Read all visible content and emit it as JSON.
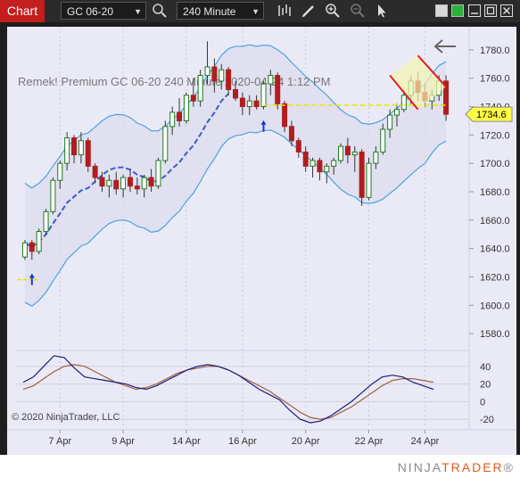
{
  "toolbar": {
    "tab_label": "Chart",
    "instrument": "GC 06-20",
    "interval": "240 Minute",
    "icons": [
      "search-icon",
      "bar-chart-icon",
      "draw-pencil-icon",
      "zoom-in-icon",
      "zoom-out-icon",
      "cursor-arrow-icon",
      "window-gray-icon",
      "window-green-icon",
      "minimize-icon",
      "maximize-icon",
      "close-icon"
    ]
  },
  "chart": {
    "header_text": "Remek!  Premium  GC 06-20  240 Minute  2020-04-24 1:12 PM",
    "price_ticks": [
      "1780.0",
      "1760.0",
      "1740.0",
      "1720.0",
      "1700.0",
      "1680.0",
      "1660.0",
      "1640.0",
      "1620.0",
      "1600.0",
      "1580.0"
    ],
    "current_price": "1734.6",
    "osc_ticks": [
      "40",
      "20",
      "0",
      "-20"
    ],
    "date_labels": [
      "7 Apr",
      "9 Apr",
      "14 Apr",
      "16 Apr",
      "20 Apr",
      "22 Apr",
      "24 Apr"
    ],
    "copyright": "© 2020 NinjaTrader, LLC",
    "colors": {
      "background": "#eaeaf7",
      "candle_up": "#1e7a1e",
      "candle_down": "#b01e1e",
      "band": "#4aa3e0",
      "mid_ma": "#3a5cc8",
      "level": "#e6e600",
      "price_badge": "#ffff44",
      "osc_fast": "#1a1a7a",
      "osc_slow": "#a0603a"
    }
  },
  "chart_data": {
    "type": "candlestick",
    "instrument": "GC 06-20",
    "interval": "240 Minute",
    "y_range": [
      1570,
      1790
    ],
    "osc_range": [
      -30,
      55
    ],
    "candles": [
      [
        1634,
        1646,
        1632,
        1644
      ],
      [
        1644,
        1646,
        1632,
        1638
      ],
      [
        1638,
        1654,
        1636,
        1652
      ],
      [
        1652,
        1668,
        1650,
        1666
      ],
      [
        1666,
        1690,
        1664,
        1688
      ],
      [
        1688,
        1702,
        1682,
        1700
      ],
      [
        1700,
        1722,
        1695,
        1718
      ],
      [
        1718,
        1720,
        1700,
        1706
      ],
      [
        1706,
        1722,
        1700,
        1716
      ],
      [
        1716,
        1718,
        1694,
        1698
      ],
      [
        1698,
        1700,
        1686,
        1690
      ],
      [
        1690,
        1694,
        1680,
        1684
      ],
      [
        1684,
        1692,
        1676,
        1688
      ],
      [
        1688,
        1694,
        1678,
        1682
      ],
      [
        1682,
        1692,
        1676,
        1690
      ],
      [
        1690,
        1696,
        1680,
        1684
      ],
      [
        1684,
        1690,
        1678,
        1682
      ],
      [
        1682,
        1692,
        1676,
        1690
      ],
      [
        1690,
        1696,
        1680,
        1684
      ],
      [
        1684,
        1704,
        1682,
        1702
      ],
      [
        1702,
        1730,
        1700,
        1726
      ],
      [
        1726,
        1740,
        1720,
        1736
      ],
      [
        1736,
        1746,
        1726,
        1730
      ],
      [
        1730,
        1750,
        1728,
        1748
      ],
      [
        1748,
        1760,
        1740,
        1744
      ],
      [
        1744,
        1766,
        1740,
        1762
      ],
      [
        1762,
        1786,
        1756,
        1768
      ],
      [
        1768,
        1774,
        1750,
        1758
      ],
      [
        1758,
        1770,
        1752,
        1766
      ],
      [
        1766,
        1768,
        1748,
        1752
      ],
      [
        1752,
        1758,
        1744,
        1746
      ],
      [
        1746,
        1750,
        1734,
        1740
      ],
      [
        1740,
        1748,
        1734,
        1744
      ],
      [
        1744,
        1748,
        1738,
        1740
      ],
      [
        1740,
        1758,
        1738,
        1756
      ],
      [
        1756,
        1766,
        1748,
        1762
      ],
      [
        1762,
        1764,
        1738,
        1742
      ],
      [
        1742,
        1744,
        1722,
        1726
      ],
      [
        1726,
        1730,
        1712,
        1716
      ],
      [
        1716,
        1718,
        1704,
        1708
      ],
      [
        1708,
        1712,
        1694,
        1698
      ],
      [
        1698,
        1704,
        1690,
        1702
      ],
      [
        1702,
        1704,
        1688,
        1694
      ],
      [
        1694,
        1700,
        1686,
        1698
      ],
      [
        1698,
        1704,
        1692,
        1702
      ],
      [
        1702,
        1714,
        1700,
        1712
      ],
      [
        1712,
        1718,
        1700,
        1706
      ],
      [
        1706,
        1712,
        1694,
        1708
      ],
      [
        1708,
        1710,
        1670,
        1676
      ],
      [
        1676,
        1704,
        1674,
        1700
      ],
      [
        1700,
        1712,
        1696,
        1708
      ],
      [
        1708,
        1728,
        1706,
        1724
      ],
      [
        1724,
        1738,
        1718,
        1734
      ],
      [
        1734,
        1742,
        1726,
        1738
      ],
      [
        1738,
        1752,
        1736,
        1748
      ],
      [
        1748,
        1762,
        1742,
        1758
      ],
      [
        1758,
        1764,
        1744,
        1750
      ],
      [
        1750,
        1756,
        1740,
        1744
      ],
      [
        1744,
        1752,
        1738,
        1748
      ],
      [
        1748,
        1762,
        1744,
        1758
      ],
      [
        1758,
        1762,
        1730,
        1734.6
      ]
    ],
    "level_line": 1741,
    "osc_fast": [
      22,
      28,
      40,
      52,
      50,
      38,
      28,
      26,
      24,
      22,
      20,
      16,
      14,
      18,
      24,
      30,
      36,
      40,
      42,
      40,
      36,
      30,
      22,
      14,
      8,
      2,
      -10,
      -20,
      -24,
      -22,
      -16,
      -8,
      0,
      10,
      20,
      28,
      30,
      28,
      22,
      18,
      14
    ],
    "osc_slow": [
      14,
      18,
      26,
      34,
      40,
      42,
      40,
      34,
      28,
      22,
      18,
      14,
      16,
      20,
      26,
      32,
      36,
      38,
      40,
      40,
      36,
      30,
      24,
      18,
      12,
      4,
      -4,
      -12,
      -18,
      -20,
      -18,
      -12,
      -6,
      2,
      10,
      18,
      24,
      26,
      26,
      24,
      22
    ]
  }
}
